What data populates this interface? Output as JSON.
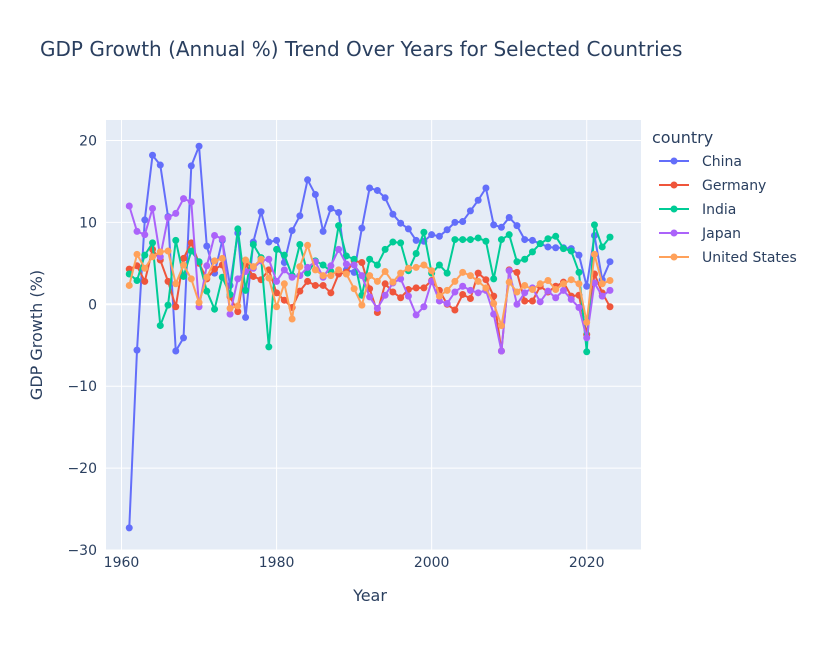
{
  "chart_data": {
    "type": "line",
    "title": "GDP Growth (Annual %) Trend Over Years for Selected Countries",
    "xlabel": "Year",
    "ylabel": "GDP Growth (%)",
    "xlim": [
      1958,
      2027
    ],
    "ylim": [
      -30,
      22.5
    ],
    "xticks": [
      1960,
      1980,
      2000,
      2020
    ],
    "yticks": [
      -30,
      -20,
      -10,
      0,
      10,
      20
    ],
    "ytick_labels": [
      "−30",
      "−20",
      "−10",
      "0",
      "10",
      "20"
    ],
    "grid": true,
    "legend_title": "country",
    "legend_position": "right",
    "x": [
      1961,
      1962,
      1963,
      1964,
      1965,
      1966,
      1967,
      1968,
      1969,
      1970,
      1971,
      1972,
      1973,
      1974,
      1975,
      1976,
      1977,
      1978,
      1979,
      1980,
      1981,
      1982,
      1983,
      1984,
      1985,
      1986,
      1987,
      1988,
      1989,
      1990,
      1991,
      1992,
      1993,
      1994,
      1995,
      1996,
      1997,
      1998,
      1999,
      2000,
      2001,
      2002,
      2003,
      2004,
      2005,
      2006,
      2007,
      2008,
      2009,
      2010,
      2011,
      2012,
      2013,
      2014,
      2015,
      2016,
      2017,
      2018,
      2019,
      2020,
      2021,
      2022,
      2023
    ],
    "series": [
      {
        "name": "China",
        "color": "#636efa",
        "values": [
          -27.3,
          -5.6,
          10.3,
          18.2,
          17.0,
          10.7,
          -5.7,
          -4.1,
          16.9,
          19.3,
          7.1,
          3.8,
          7.8,
          2.3,
          8.7,
          -1.6,
          7.6,
          11.3,
          7.6,
          7.8,
          5.1,
          9.0,
          10.8,
          15.2,
          13.4,
          8.9,
          11.7,
          11.2,
          4.2,
          3.9,
          9.3,
          14.2,
          13.9,
          13.0,
          11.0,
          9.9,
          9.2,
          7.8,
          7.7,
          8.5,
          8.3,
          9.1,
          10.0,
          10.1,
          11.4,
          12.7,
          14.2,
          9.7,
          9.4,
          10.6,
          9.6,
          7.9,
          7.8,
          7.4,
          7.0,
          6.9,
          6.9,
          6.8,
          6.0,
          2.2,
          8.4,
          3.0,
          5.2
        ]
      },
      {
        "name": "Germany",
        "color": "#ef553b",
        "values": [
          4.3,
          4.7,
          2.8,
          6.7,
          5.4,
          2.8,
          -0.3,
          5.6,
          7.5,
          5.0,
          3.1,
          4.3,
          4.8,
          0.9,
          -0.9,
          4.9,
          3.4,
          3.0,
          4.2,
          1.4,
          0.5,
          -0.4,
          1.6,
          2.8,
          2.3,
          2.3,
          1.4,
          3.7,
          3.9,
          5.3,
          5.1,
          1.9,
          -1.0,
          2.5,
          1.5,
          0.8,
          1.8,
          2.0,
          2.0,
          2.9,
          1.7,
          0.0,
          -0.7,
          1.2,
          0.7,
          3.8,
          3.0,
          1.0,
          -5.7,
          4.2,
          3.9,
          0.4,
          0.4,
          2.2,
          1.5,
          2.2,
          2.7,
          1.0,
          1.1,
          -3.7,
          3.7,
          1.4,
          -0.3
        ]
      },
      {
        "name": "India",
        "color": "#00cc96",
        "values": [
          3.7,
          2.9,
          6.0,
          7.5,
          -2.6,
          -0.1,
          7.8,
          3.4,
          6.5,
          5.2,
          1.6,
          -0.6,
          3.3,
          1.2,
          9.2,
          1.7,
          7.3,
          5.7,
          -5.2,
          6.7,
          6.0,
          3.5,
          7.3,
          3.8,
          5.3,
          4.8,
          4.0,
          9.6,
          5.9,
          5.5,
          1.1,
          5.5,
          4.8,
          6.7,
          7.6,
          7.5,
          4.1,
          6.2,
          8.8,
          3.8,
          4.8,
          3.8,
          7.9,
          7.9,
          7.9,
          8.1,
          7.7,
          3.1,
          7.9,
          8.5,
          5.2,
          5.5,
          6.4,
          7.4,
          8.0,
          8.3,
          6.8,
          6.5,
          3.9,
          -5.8,
          9.7,
          7.0,
          8.2
        ]
      },
      {
        "name": "Japan",
        "color": "#ab63fa",
        "values": [
          12.0,
          8.9,
          8.5,
          11.7,
          5.8,
          10.6,
          11.1,
          12.9,
          12.5,
          -0.3,
          4.7,
          8.4,
          8.0,
          -1.2,
          3.1,
          4.0,
          4.4,
          5.3,
          5.5,
          2.8,
          4.2,
          3.3,
          3.5,
          4.5,
          5.2,
          3.3,
          4.7,
          6.7,
          4.9,
          4.8,
          3.5,
          0.9,
          -0.5,
          1.1,
          2.6,
          3.1,
          1.0,
          -1.3,
          -0.3,
          2.8,
          0.4,
          0.1,
          1.5,
          2.2,
          1.7,
          1.4,
          1.7,
          -1.2,
          -5.7,
          4.1,
          0.0,
          1.4,
          2.0,
          0.3,
          1.6,
          0.8,
          1.7,
          0.6,
          -0.4,
          -4.1,
          2.6,
          1.0,
          1.7
        ]
      },
      {
        "name": "United States",
        "color": "#ffa15a",
        "values": [
          2.3,
          6.1,
          4.4,
          5.8,
          6.4,
          6.5,
          2.5,
          4.8,
          3.1,
          0.2,
          3.3,
          5.3,
          5.6,
          -0.5,
          -0.2,
          5.4,
          4.6,
          5.5,
          3.2,
          -0.3,
          2.5,
          -1.8,
          4.6,
          7.2,
          4.2,
          3.5,
          3.5,
          4.2,
          3.7,
          1.9,
          -0.1,
          3.5,
          2.8,
          4.0,
          2.7,
          3.8,
          4.4,
          4.5,
          4.8,
          4.1,
          1.0,
          1.7,
          2.8,
          3.9,
          3.5,
          2.8,
          2.0,
          0.1,
          -2.6,
          2.7,
          1.5,
          2.3,
          1.8,
          2.5,
          2.9,
          1.8,
          2.5,
          3.0,
          2.5,
          -2.2,
          6.1,
          2.5,
          2.9
        ]
      }
    ]
  }
}
